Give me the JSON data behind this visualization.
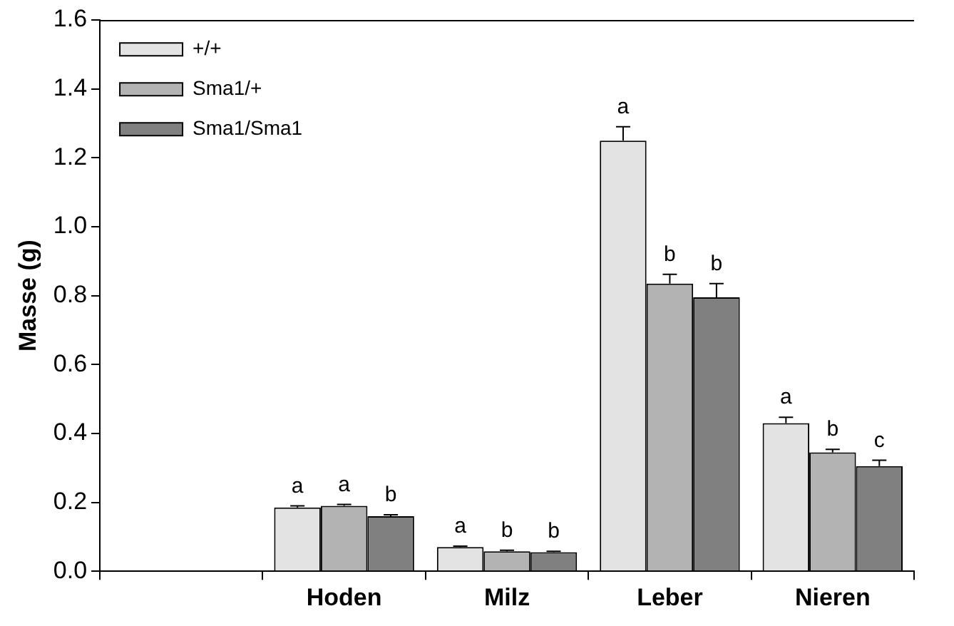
{
  "chart_data": {
    "type": "bar",
    "ylabel": "Masse (g)",
    "categories": [
      null,
      "Hoden",
      "Milz",
      "Leber",
      "Nieren"
    ],
    "series": [
      {
        "name": "+/+",
        "color": "#e3e3e3",
        "values": [
          null,
          0.185,
          0.07,
          1.25,
          0.43
        ],
        "errors": [
          null,
          0.005,
          0.003,
          0.04,
          0.017
        ]
      },
      {
        "name": "Sma1/+",
        "color": "#b3b3b3",
        "values": [
          null,
          0.19,
          0.058,
          0.835,
          0.345
        ],
        "errors": [
          null,
          0.004,
          0.003,
          0.027,
          0.009
        ]
      },
      {
        "name": "Sma1/Sma1",
        "color": "#808080",
        "values": [
          null,
          0.16,
          0.055,
          0.795,
          0.305
        ],
        "errors": [
          null,
          0.004,
          0.003,
          0.04,
          0.017
        ]
      }
    ],
    "ylim": [
      0,
      1.6
    ],
    "yticks": [
      {
        "value": 0,
        "label": "0.0"
      },
      {
        "value": 0.2,
        "label": "0.2"
      },
      {
        "value": 0.4,
        "label": "0.4"
      },
      {
        "value": 0.6,
        "label": "0.6"
      },
      {
        "value": 0.8,
        "label": "0.8"
      },
      {
        "value": 1,
        "label": "1.0"
      },
      {
        "value": 1.2,
        "label": "1.2"
      },
      {
        "value": 1.4,
        "label": "1.4"
      },
      {
        "value": 1.6,
        "label": "1.6"
      }
    ],
    "grid": false,
    "legend": "top left",
    "annotations": [
      "a",
      "a",
      "b",
      "a",
      "b",
      "b",
      "a",
      "b",
      "b",
      "a",
      "b",
      "c"
    ]
  }
}
